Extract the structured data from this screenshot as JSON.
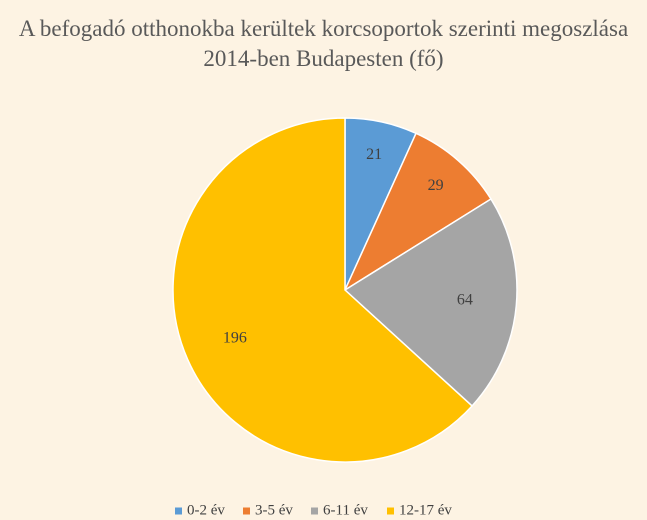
{
  "chart_data": {
    "type": "pie",
    "title": "A befogadó otthonokba kerültek korcsoportok szerinti megoszlása 2014-ben Budapesten (fő)",
    "categories": [
      "0-2 év",
      "3-5 év",
      "6-11 év",
      "12-17 év"
    ],
    "values": [
      21,
      29,
      64,
      196
    ],
    "colors": [
      "#5b9bd5",
      "#ed7d31",
      "#a5a5a5",
      "#ffc000"
    ],
    "legend": "bottom"
  }
}
